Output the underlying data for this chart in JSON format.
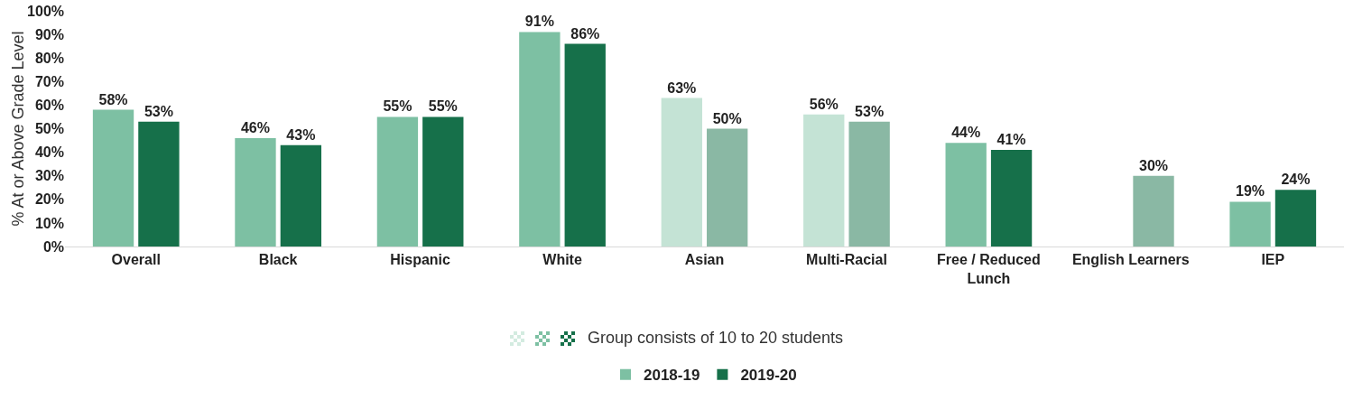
{
  "chart_data": {
    "type": "bar",
    "ylabel": "% At or Above Grade Level",
    "categories": [
      "Overall",
      "Black",
      "Hispanic",
      "White",
      "Asian",
      "Multi-Racial",
      "Free / Reduced Lunch",
      "English Learners",
      "IEP"
    ],
    "series": [
      {
        "name": "2018-19",
        "color": "#7dc0a3",
        "values": [
          58,
          46,
          55,
          91,
          63,
          56,
          44,
          null,
          19
        ],
        "value_labels": [
          "58%",
          "46%",
          "55%",
          "91%",
          "63%",
          "56%",
          "44%",
          null,
          "19%"
        ],
        "colors": [
          "#7dc0a3",
          "#7dc0a3",
          "#7dc0a3",
          "#7dc0a3",
          "#c4e3d5",
          "#c4e3d5",
          "#7dc0a3",
          null,
          "#7dc0a3"
        ]
      },
      {
        "name": "2019-20",
        "color": "#16704a",
        "values": [
          53,
          43,
          55,
          86,
          50,
          53,
          41,
          30,
          24
        ],
        "value_labels": [
          "53%",
          "43%",
          "55%",
          "86%",
          "50%",
          "53%",
          "41%",
          "30%",
          "24%"
        ],
        "colors": [
          "#16704a",
          "#16704a",
          "#16704a",
          "#16704a",
          "#8ab8a4",
          "#8ab8a4",
          "#16704a",
          "#8ab8a4",
          "#16704a"
        ]
      }
    ],
    "ylim": [
      0,
      100
    ],
    "yticks": [
      {
        "value": 0,
        "label": "0%"
      },
      {
        "value": 10,
        "label": "10%"
      },
      {
        "value": 20,
        "label": "20%"
      },
      {
        "value": 30,
        "label": "30%"
      },
      {
        "value": 40,
        "label": "40%"
      },
      {
        "value": 50,
        "label": "50%"
      },
      {
        "value": 60,
        "label": "60%"
      },
      {
        "value": 70,
        "label": "70%"
      },
      {
        "value": 80,
        "label": "80%"
      },
      {
        "value": 90,
        "label": "90%"
      },
      {
        "value": 100,
        "label": "100%"
      }
    ],
    "annotations": [
      "Group consists of 10 to 20 students"
    ],
    "grid": false,
    "legend": "bottom"
  }
}
